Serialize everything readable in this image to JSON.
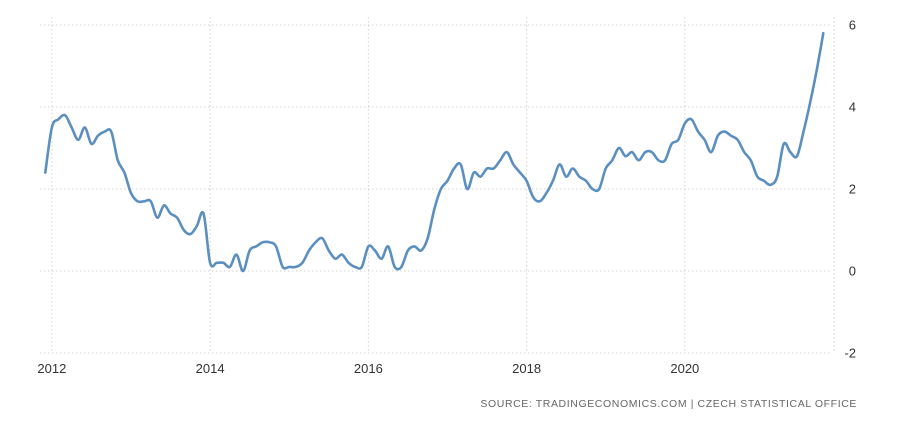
{
  "chart_data": {
    "type": "line",
    "title": "",
    "xlabel": "",
    "ylabel": "",
    "ylim": [
      -2,
      6
    ],
    "yticks": [
      -2,
      0,
      2,
      4,
      6
    ],
    "xticks": [
      2012,
      2014,
      2016,
      2018,
      2020
    ],
    "grid": true,
    "legend": "none",
    "line_color": "#5b8fbf",
    "series": [
      {
        "x": [
          2011.917,
          2012.0,
          2012.083,
          2012.167,
          2012.25,
          2012.333,
          2012.417,
          2012.5,
          2012.583,
          2012.667,
          2012.75,
          2012.833,
          2012.917,
          2013.0,
          2013.083,
          2013.167,
          2013.25,
          2013.333,
          2013.417,
          2013.5,
          2013.583,
          2013.667,
          2013.75,
          2013.833,
          2013.917,
          2014.0,
          2014.083,
          2014.167,
          2014.25,
          2014.333,
          2014.417,
          2014.5,
          2014.583,
          2014.667,
          2014.75,
          2014.833,
          2014.917,
          2015.0,
          2015.083,
          2015.167,
          2015.25,
          2015.333,
          2015.417,
          2015.5,
          2015.583,
          2015.667,
          2015.75,
          2015.833,
          2015.917,
          2016.0,
          2016.083,
          2016.167,
          2016.25,
          2016.333,
          2016.417,
          2016.5,
          2016.583,
          2016.667,
          2016.75,
          2016.833,
          2016.917,
          2017.0,
          2017.083,
          2017.167,
          2017.25,
          2017.333,
          2017.417,
          2017.5,
          2017.583,
          2017.667,
          2017.75,
          2017.833,
          2017.917,
          2018.0,
          2018.083,
          2018.167,
          2018.25,
          2018.333,
          2018.417,
          2018.5,
          2018.583,
          2018.667,
          2018.75,
          2018.833,
          2018.917,
          2019.0,
          2019.083,
          2019.167,
          2019.25,
          2019.333,
          2019.417,
          2019.5,
          2019.583,
          2019.667,
          2019.75,
          2019.833,
          2019.917,
          2020.0,
          2020.083,
          2020.167,
          2020.25,
          2020.333,
          2020.417,
          2020.5,
          2020.583,
          2020.667,
          2020.75,
          2020.833,
          2020.917,
          2021.0,
          2021.083,
          2021.167,
          2021.25,
          2021.333,
          2021.417,
          2021.5,
          2021.583,
          2021.667,
          2021.75
        ],
        "y": [
          2.4,
          3.5,
          3.7,
          3.8,
          3.5,
          3.2,
          3.5,
          3.1,
          3.3,
          3.4,
          3.4,
          2.7,
          2.4,
          1.9,
          1.7,
          1.7,
          1.7,
          1.3,
          1.6,
          1.4,
          1.3,
          1.0,
          0.9,
          1.1,
          1.4,
          0.2,
          0.2,
          0.2,
          0.1,
          0.4,
          0.0,
          0.5,
          0.6,
          0.7,
          0.7,
          0.6,
          0.1,
          0.1,
          0.1,
          0.2,
          0.5,
          0.7,
          0.8,
          0.5,
          0.3,
          0.4,
          0.2,
          0.1,
          0.1,
          0.6,
          0.5,
          0.3,
          0.6,
          0.1,
          0.1,
          0.5,
          0.6,
          0.5,
          0.8,
          1.5,
          2.0,
          2.2,
          2.5,
          2.6,
          2.0,
          2.4,
          2.3,
          2.5,
          2.5,
          2.7,
          2.9,
          2.6,
          2.4,
          2.2,
          1.8,
          1.7,
          1.9,
          2.2,
          2.6,
          2.3,
          2.5,
          2.3,
          2.2,
          2.0,
          2.0,
          2.5,
          2.7,
          3.0,
          2.8,
          2.9,
          2.7,
          2.9,
          2.9,
          2.7,
          2.7,
          3.1,
          3.2,
          3.6,
          3.7,
          3.4,
          3.2,
          2.9,
          3.3,
          3.4,
          3.3,
          3.2,
          2.9,
          2.7,
          2.3,
          2.2,
          2.1,
          2.3,
          3.1,
          2.9,
          2.8,
          3.4,
          4.1,
          4.9,
          5.8
        ]
      }
    ],
    "source": "SOURCE: TRADINGECONOMICS.COM | CZECH STATISTICAL OFFICE"
  }
}
